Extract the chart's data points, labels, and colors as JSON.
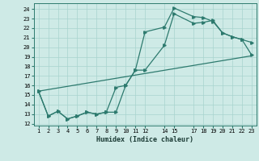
{
  "xlabel": "Humidex (Indice chaleur)",
  "bg_color": "#ceeae6",
  "grid_color": "#a8d4cf",
  "line_color": "#2d7a6e",
  "ylim": [
    11.8,
    24.6
  ],
  "xlim": [
    0.5,
    23.5
  ],
  "yticks": [
    12,
    13,
    14,
    15,
    16,
    17,
    18,
    19,
    20,
    21,
    22,
    23,
    24
  ],
  "xticks": [
    1,
    2,
    3,
    4,
    5,
    6,
    7,
    8,
    9,
    10,
    11,
    12,
    14,
    15,
    17,
    18,
    19,
    20,
    21,
    22,
    23
  ],
  "xtick_labels": [
    "1",
    "2",
    "3",
    "4",
    "5",
    "6",
    "7",
    "8",
    "9",
    "10",
    "11",
    "12",
    "14",
    "15",
    "17",
    "18",
    "19",
    "20",
    "21",
    "22",
    "23"
  ],
  "line1_x": [
    1,
    23
  ],
  "line1_y": [
    15.4,
    19.1
  ],
  "line2_x": [
    1,
    2,
    3,
    4,
    5,
    6,
    7,
    8,
    9,
    10,
    11,
    12,
    14,
    15,
    17,
    18,
    19,
    20,
    21,
    22,
    23
  ],
  "line2_y": [
    15.4,
    12.8,
    13.3,
    12.5,
    12.8,
    13.2,
    13.0,
    13.2,
    13.2,
    16.0,
    17.6,
    17.6,
    20.2,
    23.5,
    22.5,
    22.6,
    22.8,
    21.5,
    21.1,
    20.8,
    20.5
  ],
  "line3_x": [
    1,
    2,
    3,
    4,
    5,
    6,
    7,
    8,
    9,
    10,
    11,
    12,
    14,
    15,
    17,
    18,
    19,
    20,
    21,
    22,
    23
  ],
  "line3_y": [
    15.4,
    12.8,
    13.3,
    12.5,
    12.8,
    13.2,
    13.0,
    13.2,
    15.8,
    16.0,
    17.6,
    21.6,
    22.1,
    24.1,
    23.2,
    23.1,
    22.7,
    21.5,
    21.1,
    20.8,
    19.2
  ]
}
